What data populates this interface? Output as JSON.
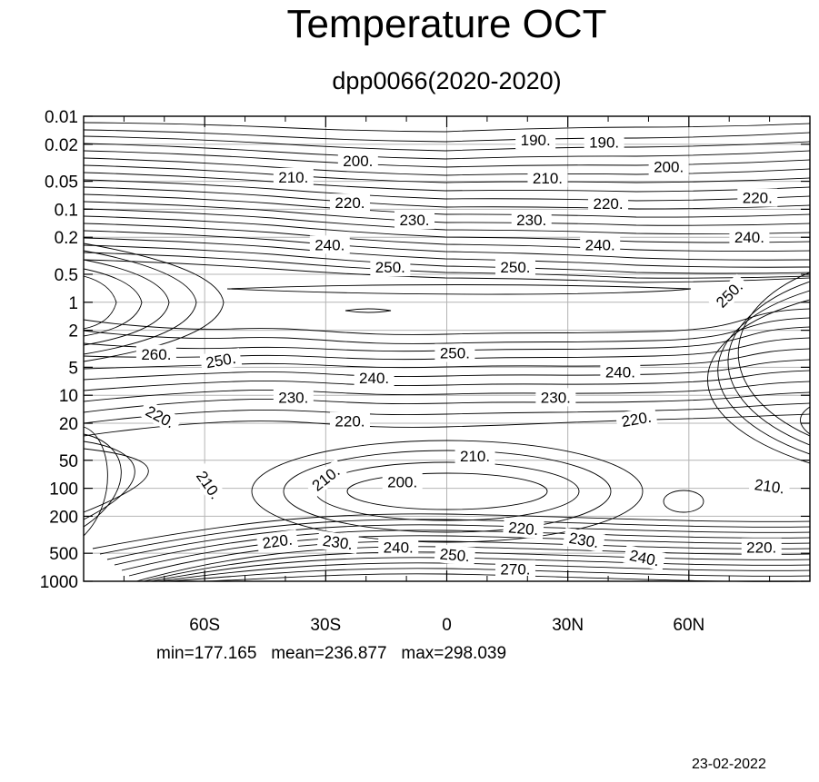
{
  "chart_data": {
    "type": "contour",
    "title": "Temperature OCT",
    "subtitle": "dpp0066(2020-2020)",
    "xlabel": "",
    "ylabel": "",
    "x_ticks": [
      {
        "value": -60,
        "label": "60S"
      },
      {
        "value": -30,
        "label": "30S"
      },
      {
        "value": 0,
        "label": "0"
      },
      {
        "value": 30,
        "label": "30N"
      },
      {
        "value": 60,
        "label": "60N"
      }
    ],
    "xlim": [
      -90,
      90
    ],
    "y_scale": "log",
    "ylim": [
      1000,
      0.01
    ],
    "y_ticks": [
      0.01,
      0.02,
      0.05,
      0.1,
      0.2,
      0.5,
      1,
      2,
      5,
      10,
      20,
      50,
      100,
      200,
      500,
      1000
    ],
    "y_tick_labels": [
      "0.01",
      "0.02",
      "0.05",
      "0.1",
      "0.2",
      "0.5",
      "1",
      "2",
      "5",
      "10",
      "20",
      "50",
      "100",
      "200",
      "500",
      "1000"
    ],
    "grid": true,
    "contour_labels": [
      {
        "text": "190.",
        "lat": 22,
        "p": 0.018,
        "angle": 0
      },
      {
        "text": "190.",
        "lat": 39,
        "p": 0.019,
        "angle": 0
      },
      {
        "text": "200.",
        "lat": -22,
        "p": 0.03,
        "angle": 0
      },
      {
        "text": "200.",
        "lat": 55,
        "p": 0.035,
        "angle": 0
      },
      {
        "text": "210.",
        "lat": -38,
        "p": 0.045,
        "angle": 0
      },
      {
        "text": "210.",
        "lat": 25,
        "p": 0.046,
        "angle": 0
      },
      {
        "text": "220.",
        "lat": -24,
        "p": 0.085,
        "angle": 0
      },
      {
        "text": "220.",
        "lat": 40,
        "p": 0.087,
        "angle": 0
      },
      {
        "text": "220.",
        "lat": 77,
        "p": 0.075,
        "angle": 0
      },
      {
        "text": "230.",
        "lat": -8,
        "p": 0.13,
        "angle": 0
      },
      {
        "text": "230.",
        "lat": 21,
        "p": 0.13,
        "angle": 0
      },
      {
        "text": "240.",
        "lat": -29,
        "p": 0.24,
        "angle": 0
      },
      {
        "text": "240.",
        "lat": 38,
        "p": 0.24,
        "angle": 0
      },
      {
        "text": "240.",
        "lat": 75,
        "p": 0.2,
        "angle": 0
      },
      {
        "text": "250.",
        "lat": -14,
        "p": 0.42,
        "angle": 0
      },
      {
        "text": "250.",
        "lat": 17,
        "p": 0.42,
        "angle": 0
      },
      {
        "text": "250.",
        "lat": 70,
        "p": 0.82,
        "angle": -45
      },
      {
        "text": "250.",
        "lat": 2,
        "p": 3.5,
        "angle": 0
      },
      {
        "text": "250.",
        "lat": -56,
        "p": 4.2,
        "angle": -10
      },
      {
        "text": "260.",
        "lat": -72,
        "p": 3.6,
        "angle": 0
      },
      {
        "text": "240.",
        "lat": -18,
        "p": 6.5,
        "angle": 0
      },
      {
        "text": "240.",
        "lat": 43,
        "p": 5.6,
        "angle": 0
      },
      {
        "text": "230.",
        "lat": -38,
        "p": 10.5,
        "angle": 0
      },
      {
        "text": "230.",
        "lat": 27,
        "p": 10.5,
        "angle": 0
      },
      {
        "text": "220.",
        "lat": -71,
        "p": 17,
        "angle": 28
      },
      {
        "text": "220.",
        "lat": -24,
        "p": 19,
        "angle": 0
      },
      {
        "text": "220.",
        "lat": 47,
        "p": 18,
        "angle": -10
      },
      {
        "text": "210.",
        "lat": 7,
        "p": 45,
        "angle": 0
      },
      {
        "text": "210.",
        "lat": -30,
        "p": 78,
        "angle": -38
      },
      {
        "text": "210.",
        "lat": -59,
        "p": 92,
        "angle": 55
      },
      {
        "text": "210.",
        "lat": 80,
        "p": 95,
        "angle": 8
      },
      {
        "text": "200.",
        "lat": -11,
        "p": 85,
        "angle": 0
      },
      {
        "text": "220.",
        "lat": -42,
        "p": 370,
        "angle": -8
      },
      {
        "text": "230.",
        "lat": -27,
        "p": 380,
        "angle": 8
      },
      {
        "text": "240.",
        "lat": -12,
        "p": 430,
        "angle": 0
      },
      {
        "text": "250.",
        "lat": 2,
        "p": 520,
        "angle": 5
      },
      {
        "text": "220.",
        "lat": 19,
        "p": 270,
        "angle": 5
      },
      {
        "text": "230.",
        "lat": 34,
        "p": 360,
        "angle": 10
      },
      {
        "text": "240.",
        "lat": 49,
        "p": 560,
        "angle": 12
      },
      {
        "text": "220.",
        "lat": 78,
        "p": 430,
        "angle": 0
      },
      {
        "text": "270.",
        "lat": 17,
        "p": 740,
        "angle": 0
      }
    ],
    "stats": "min=177.165   mean=236.877   max=298.039",
    "date": "23-02-2022",
    "line_color": "#000000",
    "grid_color": "#b4b4b4"
  }
}
